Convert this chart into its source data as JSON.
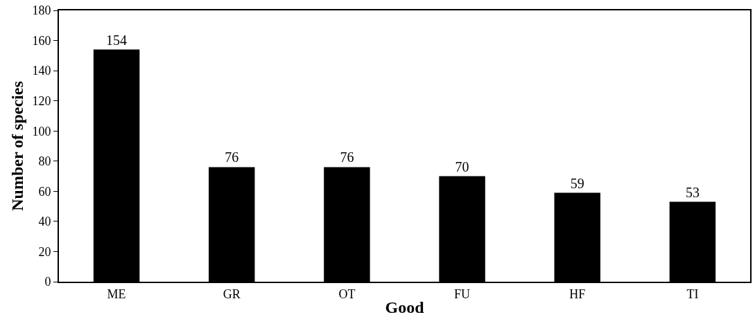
{
  "chart_data": {
    "type": "bar",
    "xlabel": "Good",
    "ylabel": "Number of species",
    "categories": [
      "ME",
      "GR",
      "OT",
      "FU",
      "HF",
      "TI"
    ],
    "values": [
      154,
      76,
      76,
      70,
      59,
      53
    ],
    "color": "#000000",
    "ylim": [
      0,
      180
    ],
    "yticks": [
      0,
      20,
      40,
      60,
      80,
      100,
      120,
      140,
      160,
      180
    ],
    "data_labels": true
  }
}
